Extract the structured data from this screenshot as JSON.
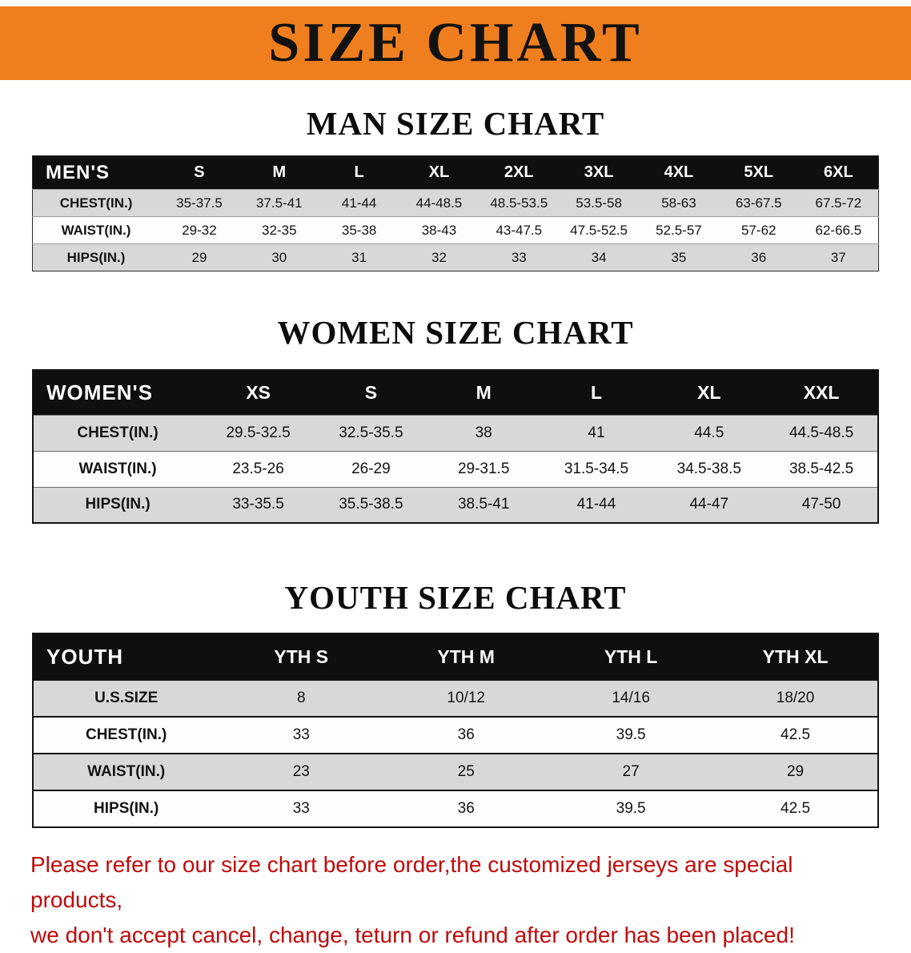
{
  "banner": {
    "title": "SIZE CHART",
    "bg": "#EF7F1E"
  },
  "men": {
    "heading": "MAN SIZE CHART",
    "header": [
      "MEN'S",
      "S",
      "M",
      "L",
      "XL",
      "2XL",
      "3XL",
      "4XL",
      "5XL",
      "6XL"
    ],
    "rows": [
      {
        "label": "CHEST(IN.)",
        "values": [
          "35-37.5",
          "37.5-41",
          "41-44",
          "44-48.5",
          "48.5-53.5",
          "53.5-58",
          "58-63",
          "63-67.5",
          "67.5-72"
        ]
      },
      {
        "label": "WAIST(IN.)",
        "values": [
          "29-32",
          "32-35",
          "35-38",
          "38-43",
          "43-47.5",
          "47.5-52.5",
          "52.5-57",
          "57-62",
          "62-66.5"
        ]
      },
      {
        "label": "HIPS(IN.)",
        "values": [
          "29",
          "30",
          "31",
          "32",
          "33",
          "34",
          "35",
          "36",
          "37"
        ]
      }
    ]
  },
  "women": {
    "heading": "WOMEN SIZE CHART",
    "header": [
      "WOMEN'S",
      "XS",
      "S",
      "M",
      "L",
      "XL",
      "XXL"
    ],
    "rows": [
      {
        "label": "CHEST(IN.)",
        "values": [
          "29.5-32.5",
          "32.5-35.5",
          "38",
          "41",
          "44.5",
          "44.5-48.5"
        ]
      },
      {
        "label": "WAIST(IN.)",
        "values": [
          "23.5-26",
          "26-29",
          "29-31.5",
          "31.5-34.5",
          "34.5-38.5",
          "38.5-42.5"
        ]
      },
      {
        "label": "HIPS(IN.)",
        "values": [
          "33-35.5",
          "35.5-38.5",
          "38.5-41",
          "41-44",
          "44-47",
          "47-50"
        ]
      }
    ]
  },
  "youth": {
    "heading": "YOUTH SIZE CHART",
    "header": [
      "YOUTH",
      "YTH S",
      "YTH M",
      "YTH L",
      "YTH XL"
    ],
    "rows": [
      {
        "label": "U.S.SIZE",
        "values": [
          "8",
          "10/12",
          "14/16",
          "18/20"
        ]
      },
      {
        "label": "CHEST(IN.)",
        "values": [
          "33",
          "36",
          "39.5",
          "42.5"
        ]
      },
      {
        "label": "WAIST(IN.)",
        "values": [
          "23",
          "25",
          "27",
          "29"
        ]
      },
      {
        "label": "HIPS(IN.)",
        "values": [
          "33",
          "36",
          "39.5",
          "42.5"
        ]
      }
    ]
  },
  "disclaimer": {
    "line1": "Please refer to our size chart before order,the customized jerseys are special products,",
    "line2": "we don't accept cancel, change, teturn or refund after order has been placed!",
    "color": "#c00a0a"
  }
}
